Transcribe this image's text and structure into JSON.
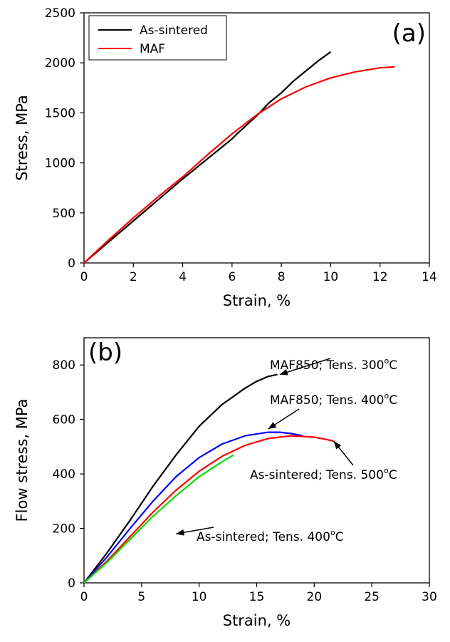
{
  "chart_data": [
    {
      "panel": "(a)",
      "type": "line",
      "xlabel": "Strain, %",
      "ylabel": "Stress, MPa",
      "xlim": [
        0,
        14
      ],
      "ylim": [
        0,
        2500
      ],
      "xticks": [
        "0",
        "2",
        "4",
        "6",
        "8",
        "10",
        "12",
        "14"
      ],
      "yticks": [
        "0",
        "500",
        "1000",
        "1500",
        "2000",
        "2500"
      ],
      "legend": {
        "placement": "top-left",
        "entries": [
          "As-sintered",
          "MAF"
        ]
      },
      "grid": false,
      "series": [
        {
          "name": "As-sintered",
          "color": "#000000",
          "x": [
            0,
            1,
            2,
            3,
            4,
            5,
            6,
            6.2,
            7,
            7.5,
            8,
            8.5,
            9,
            9.5,
            10
          ],
          "y": [
            0,
            210,
            420,
            630,
            840,
            1040,
            1240,
            1290,
            1470,
            1600,
            1700,
            1820,
            1920,
            2020,
            2110
          ]
        },
        {
          "name": "MAF",
          "color": "#ff0000",
          "x": [
            0,
            1,
            2,
            3,
            4,
            5,
            6,
            7,
            8,
            9,
            10,
            11,
            12,
            12.6
          ],
          "y": [
            0,
            230,
            450,
            660,
            860,
            1080,
            1290,
            1480,
            1640,
            1760,
            1850,
            1910,
            1950,
            1960
          ]
        }
      ]
    },
    {
      "panel": "(b)",
      "type": "line",
      "xlabel": "Strain, %",
      "ylabel": "Flow stress, MPa",
      "xlim": [
        0,
        30
      ],
      "ylim": [
        0,
        900
      ],
      "xticks": [
        "0",
        "5",
        "10",
        "15",
        "20",
        "25",
        "30"
      ],
      "yticks": [
        "0",
        "200",
        "400",
        "600",
        "800"
      ],
      "grid": false,
      "series": [
        {
          "label": "MAF850; Tens. 300°C",
          "color": "#000000",
          "x": [
            0,
            2,
            4,
            6,
            8,
            10,
            12,
            14,
            15,
            16,
            16.8
          ],
          "y": [
            0,
            110,
            230,
            355,
            470,
            575,
            655,
            715,
            740,
            758,
            765
          ]
        },
        {
          "label": "MAF850; Tens. 400°C",
          "color": "#0000ff",
          "x": [
            0,
            2,
            4,
            6,
            8,
            10,
            12,
            14,
            16,
            17,
            18,
            19
          ],
          "y": [
            0,
            95,
            200,
            300,
            390,
            460,
            510,
            540,
            553,
            553,
            548,
            540
          ]
        },
        {
          "label": "As-sintered; Tens. 500°C",
          "color": "#ff0000",
          "x": [
            0,
            2,
            4,
            6,
            8,
            10,
            12,
            14,
            16,
            18,
            20,
            21,
            21.7
          ],
          "y": [
            0,
            80,
            170,
            260,
            340,
            410,
            465,
            505,
            530,
            540,
            535,
            527,
            520
          ]
        },
        {
          "label": "As-sintered; Tens. 400°C",
          "color": "#00dd00",
          "x": [
            0,
            2,
            4,
            6,
            8,
            10,
            12,
            13
          ],
          "y": [
            0,
            75,
            160,
            245,
            320,
            390,
            445,
            470
          ]
        }
      ],
      "annotations": [
        {
          "text": "MAF850; Tens. 300",
          "sup": "o",
          "unit": "C",
          "arrow_to": [
            17,
            765
          ]
        },
        {
          "text": "MAF850; Tens. 400",
          "sup": "o",
          "unit": "C",
          "arrow_to": [
            16,
            565
          ]
        },
        {
          "text": "As-sintered; Tens. 500",
          "sup": "o",
          "unit": "C",
          "arrow_to": [
            21.7,
            520
          ]
        },
        {
          "text": "As-sintered; Tens. 400",
          "sup": "o",
          "unit": "C",
          "arrow_to": [
            8,
            180
          ]
        }
      ]
    }
  ]
}
